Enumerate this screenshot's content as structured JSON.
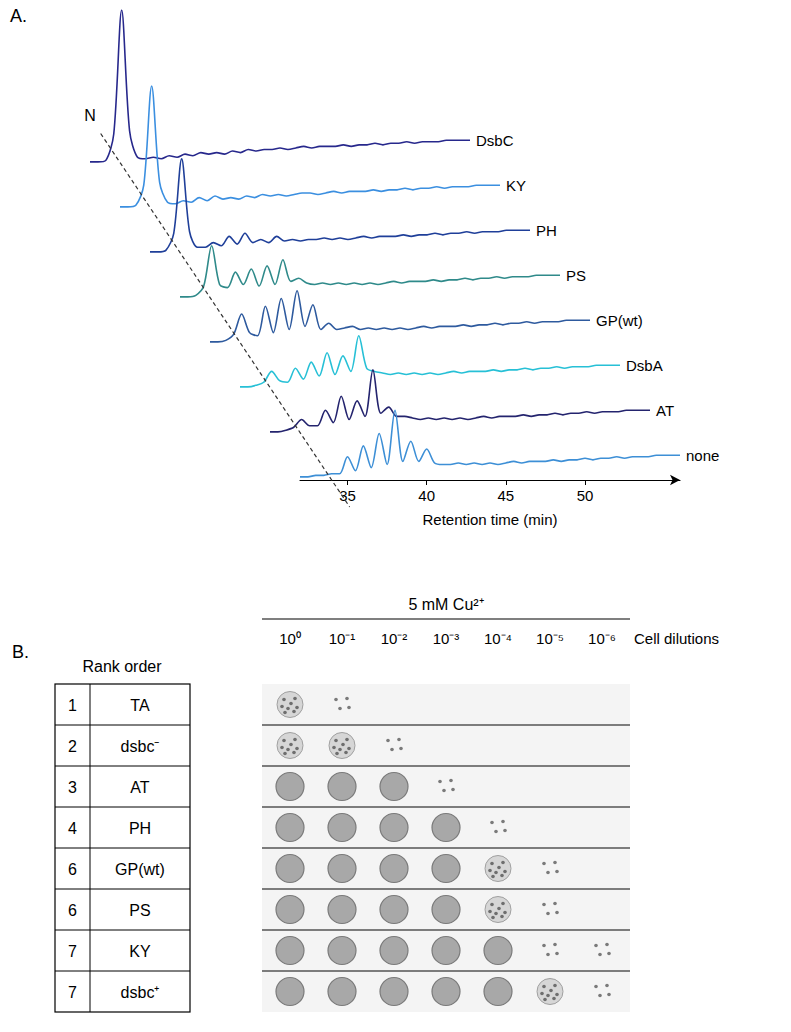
{
  "chart_data": {
    "type": "line",
    "panel_label": "A.",
    "x_label": "Retention time (min)",
    "xlim": [
      32,
      56
    ],
    "xticks": [
      35,
      40,
      45,
      50
    ],
    "ylim": [
      0,
      100
    ],
    "yticks": [],
    "tick_labels": "x",
    "grid": false,
    "annotations": [
      {
        "text": "N",
        "x": 34
      }
    ],
    "x": [
      32,
      32.5,
      33,
      33.5,
      34,
      34.5,
      35,
      35.5,
      36,
      36.5,
      37,
      37.5,
      38,
      38.5,
      39,
      39.5,
      40,
      40.5,
      41,
      41.5,
      42,
      42.5,
      43,
      43.5,
      44,
      44.5,
      45,
      45.5,
      46,
      46.5,
      47,
      47.5,
      48,
      48.5,
      49,
      49.5,
      50,
      50.5,
      51,
      51.5,
      52,
      52.5,
      53,
      53.5,
      54,
      54.5,
      55,
      55.5,
      56
    ],
    "series": [
      {
        "name": "DsbC",
        "color": "#27288c",
        "values": [
          2,
          2,
          3,
          20,
          100,
          22,
          5,
          4,
          5,
          4,
          6,
          5,
          7,
          6,
          8,
          7,
          8,
          7,
          9,
          8,
          10,
          9,
          10,
          10,
          11,
          10,
          11,
          12,
          11,
          12,
          12,
          12,
          13,
          12,
          13,
          13,
          14,
          13,
          14,
          14,
          15,
          14,
          15,
          15,
          15,
          16,
          16,
          16,
          16
        ]
      },
      {
        "name": "KY",
        "color": "#3b8fe0",
        "values": [
          2,
          2,
          3,
          16,
          80,
          18,
          5,
          4,
          6,
          5,
          8,
          6,
          9,
          7,
          8,
          7,
          9,
          8,
          10,
          9,
          10,
          9,
          10,
          11,
          11,
          10,
          11,
          12,
          11,
          12,
          12,
          12,
          13,
          12,
          13,
          13,
          14,
          13,
          14,
          14,
          15,
          14,
          15,
          15,
          15,
          16,
          16,
          16,
          16
        ]
      },
      {
        "name": "PH",
        "color": "#1f3f99",
        "values": [
          2,
          2,
          3,
          14,
          62,
          15,
          5,
          5,
          8,
          6,
          12,
          7,
          14,
          8,
          10,
          8,
          12,
          9,
          10,
          9,
          10,
          10,
          11,
          10,
          11,
          10,
          11,
          12,
          11,
          12,
          12,
          12,
          13,
          12,
          13,
          13,
          14,
          13,
          14,
          14,
          15,
          14,
          15,
          15,
          15,
          16,
          16,
          16,
          16
        ]
      },
      {
        "name": "PS",
        "color": "#2f8a8a",
        "values": [
          2,
          2,
          3,
          9,
          35,
          10,
          8,
          18,
          10,
          20,
          9,
          22,
          10,
          26,
          12,
          14,
          11,
          10,
          11,
          10,
          11,
          10,
          11,
          10,
          11,
          10,
          11,
          12,
          11,
          12,
          12,
          12,
          13,
          12,
          13,
          13,
          14,
          13,
          14,
          14,
          15,
          14,
          15,
          15,
          15,
          16,
          16,
          16,
          16
        ]
      },
      {
        "name": "GP(wt)",
        "color": "#2e5a9e",
        "values": [
          2,
          2,
          3,
          7,
          20,
          8,
          6,
          25,
          8,
          30,
          10,
          35,
          12,
          26,
          10,
          14,
          10,
          11,
          12,
          10,
          11,
          10,
          11,
          10,
          11,
          10,
          11,
          12,
          11,
          12,
          12,
          12,
          13,
          12,
          13,
          13,
          14,
          13,
          14,
          14,
          15,
          14,
          15,
          15,
          15,
          16,
          16,
          16,
          16
        ]
      },
      {
        "name": "DsbA",
        "color": "#27c0d6",
        "values": [
          2,
          2,
          3,
          5,
          12,
          6,
          5,
          14,
          7,
          18,
          9,
          24,
          10,
          22,
          12,
          35,
          14,
          12,
          11,
          10,
          11,
          10,
          11,
          10,
          11,
          10,
          11,
          12,
          11,
          12,
          12,
          12,
          13,
          12,
          13,
          13,
          14,
          13,
          14,
          14,
          15,
          14,
          15,
          15,
          15,
          16,
          16,
          16,
          16
        ]
      },
      {
        "name": "AT",
        "color": "#24246e",
        "values": [
          2,
          2,
          3,
          5,
          10,
          6,
          6,
          16,
          8,
          25,
          10,
          22,
          12,
          42,
          14,
          18,
          12,
          12,
          11,
          10,
          11,
          10,
          11,
          10,
          11,
          10,
          11,
          12,
          11,
          12,
          12,
          12,
          13,
          12,
          13,
          13,
          14,
          13,
          14,
          14,
          15,
          14,
          15,
          15,
          15,
          16,
          16,
          16,
          16
        ]
      },
      {
        "name": "none",
        "color": "#3d8fd6",
        "values": [
          2,
          2,
          3,
          3,
          4,
          4,
          15,
          6,
          22,
          8,
          30,
          10,
          45,
          12,
          25,
          12,
          20,
          11,
          10,
          10,
          11,
          10,
          11,
          10,
          11,
          10,
          11,
          12,
          11,
          12,
          12,
          12,
          13,
          12,
          13,
          13,
          14,
          13,
          14,
          14,
          15,
          14,
          15,
          15,
          15,
          16,
          16,
          16,
          16
        ]
      }
    ]
  },
  "panel_b": {
    "panel_label": "B.",
    "condition": "5 mM Cu²⁺",
    "row_header": "Rank order",
    "column_axis_label": "Cell dilutions",
    "dilutions": [
      "10⁰",
      "10⁻¹",
      "10⁻²",
      "10⁻³",
      "10⁻⁴",
      "10⁻⁵",
      "10⁻⁶"
    ],
    "rows": [
      {
        "rank": 1,
        "strain": "TA",
        "growth": [
          2,
          1,
          0,
          0,
          0,
          0,
          0
        ]
      },
      {
        "rank": 2,
        "strain": "dsbc⁻",
        "growth": [
          2,
          2,
          1,
          0,
          0,
          0,
          0
        ]
      },
      {
        "rank": 3,
        "strain": "AT",
        "growth": [
          3,
          3,
          3,
          1,
          0,
          0,
          0
        ]
      },
      {
        "rank": 4,
        "strain": "PH",
        "growth": [
          3,
          3,
          3,
          3,
          1,
          0,
          0
        ]
      },
      {
        "rank": 6,
        "strain": "GP(wt)",
        "growth": [
          3,
          3,
          3,
          3,
          2,
          1,
          0
        ]
      },
      {
        "rank": 6,
        "strain": "PS",
        "growth": [
          3,
          3,
          3,
          3,
          2,
          1,
          0
        ]
      },
      {
        "rank": 7,
        "strain": "KY",
        "growth": [
          3,
          3,
          3,
          3,
          3,
          1,
          1
        ]
      },
      {
        "rank": 7,
        "strain": "dsbc⁺",
        "growth": [
          3,
          3,
          3,
          3,
          3,
          2,
          1
        ]
      }
    ]
  }
}
